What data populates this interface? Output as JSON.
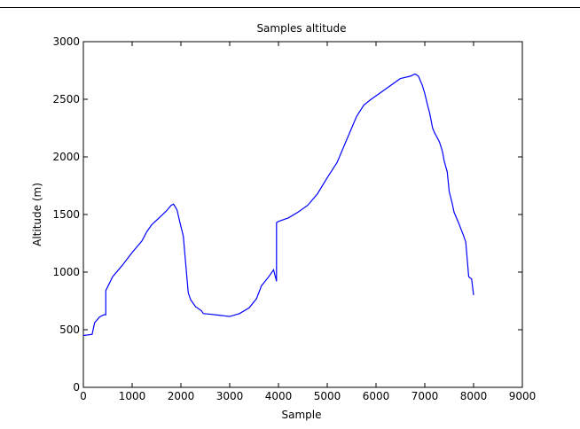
{
  "chart_data": {
    "type": "line",
    "title": "Samples altitude",
    "xlabel": "Sample",
    "ylabel": "Altitude (m)",
    "xlim": [
      0,
      9000
    ],
    "ylim": [
      0,
      3000
    ],
    "xticks": [
      0,
      1000,
      2000,
      3000,
      4000,
      5000,
      6000,
      7000,
      8000,
      9000
    ],
    "yticks": [
      0,
      500,
      1000,
      1500,
      2000,
      2500,
      3000
    ],
    "grid": false,
    "line_color": "#0000ff",
    "series": [
      {
        "x": [
          0,
          180,
          230,
          330,
          420,
          460,
          460,
          600,
          800,
          1000,
          1200,
          1300,
          1400,
          1600,
          1700,
          1800,
          1850,
          1920,
          1980,
          2050,
          2070,
          2150,
          2200,
          2300,
          2420,
          2460,
          2600,
          2800,
          3000,
          3200,
          3400,
          3550,
          3650,
          3800,
          3900,
          3960,
          3960,
          3960,
          4000,
          4200,
          4400,
          4600,
          4800,
          5000,
          5200,
          5400,
          5600,
          5750,
          5900,
          6100,
          6300,
          6500,
          6600,
          6700,
          6800,
          6870,
          6950,
          7000,
          7050,
          7100,
          7160,
          7200,
          7300,
          7360,
          7400,
          7460,
          7500,
          7560,
          7600,
          7700,
          7800,
          7840,
          7900,
          7960,
          8000
        ],
        "y": [
          450,
          460,
          560,
          610,
          630,
          630,
          840,
          960,
          1060,
          1170,
          1270,
          1350,
          1410,
          1490,
          1530,
          1580,
          1590,
          1540,
          1430,
          1310,
          1210,
          820,
          760,
          700,
          665,
          640,
          635,
          625,
          615,
          640,
          690,
          770,
          880,
          960,
          1020,
          920,
          1420,
          1430,
          1440,
          1470,
          1520,
          1580,
          1680,
          1820,
          1950,
          2150,
          2350,
          2450,
          2500,
          2560,
          2620,
          2680,
          2690,
          2700,
          2720,
          2700,
          2620,
          2550,
          2460,
          2380,
          2250,
          2210,
          2130,
          2050,
          1960,
          1870,
          1700,
          1600,
          1520,
          1420,
          1310,
          1260,
          960,
          940,
          800
        ]
      }
    ]
  }
}
